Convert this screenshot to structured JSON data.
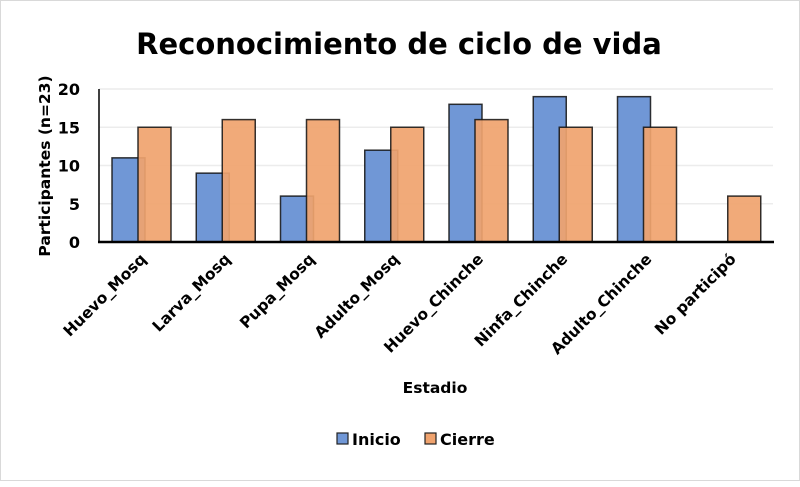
{
  "chart_data": {
    "type": "bar",
    "title": "Reconocimiento de ciclo de vida",
    "xlabel": "Estadio",
    "ylabel": "Participantes (n=23)",
    "ylim": [
      0,
      20
    ],
    "yticks": [
      0,
      5,
      10,
      15,
      20
    ],
    "grid": true,
    "legend_position": "bottom",
    "categories": [
      "Huevo_Mosq",
      "Larva_Mosq",
      "Pupa_Mosq",
      "Adulto_Mosq",
      "Huevo_Chinche",
      "Ninfa_Chinche",
      "Adulto_Chinche",
      "No participó"
    ],
    "series": [
      {
        "name": "Inicio",
        "color": "#7097d6",
        "values": [
          11,
          9,
          6,
          12,
          18,
          19,
          19,
          0
        ]
      },
      {
        "name": "Cierre",
        "color": "#f0a36e",
        "values": [
          15,
          16,
          16,
          15,
          16,
          15,
          15,
          6
        ]
      }
    ]
  }
}
